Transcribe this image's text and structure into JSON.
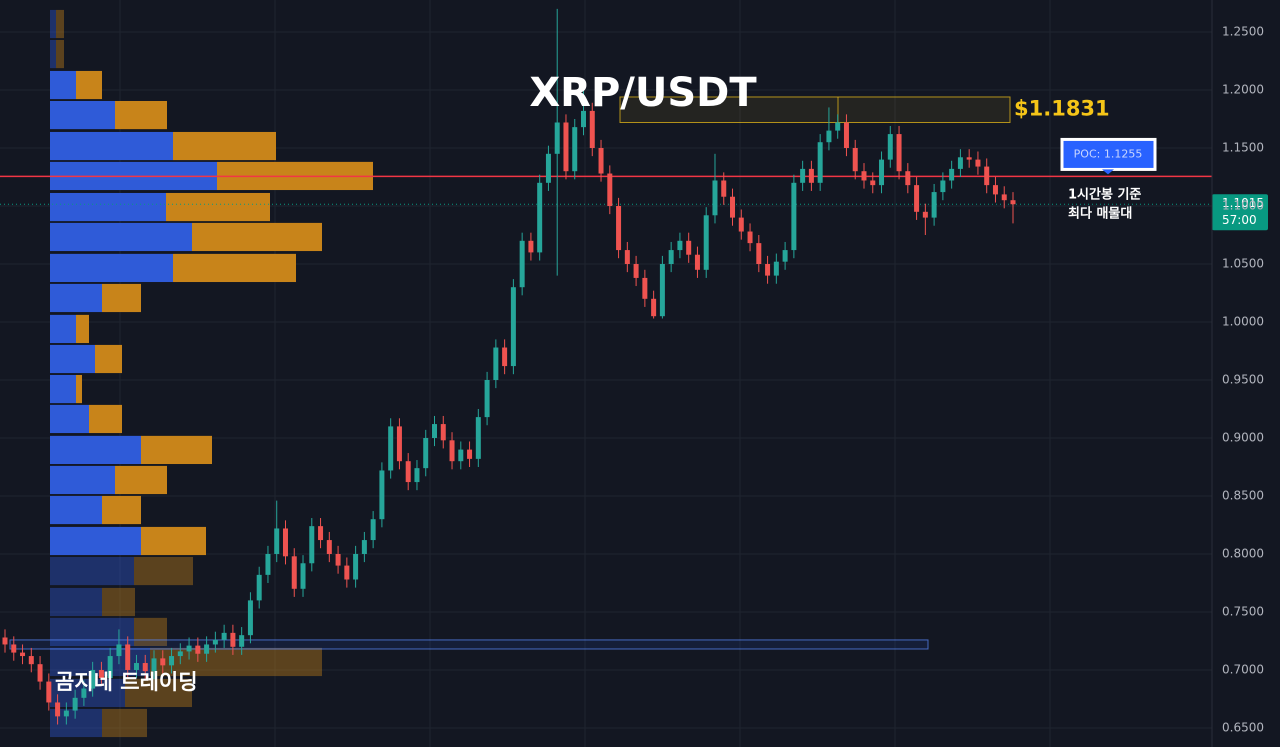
{
  "chart_data": {
    "type": "candlestick",
    "title": "XRP/USDT",
    "watermark": "곰지네 트레이딩",
    "ylim": [
      0.6336,
      1.2776
    ],
    "yticks": [
      {
        "value": 0.65,
        "label": "0.6500"
      },
      {
        "value": 0.7,
        "label": "0.7000"
      },
      {
        "value": 0.75,
        "label": "0.7500"
      },
      {
        "value": 0.8,
        "label": "0.8000"
      },
      {
        "value": 0.85,
        "label": "0.8500"
      },
      {
        "value": 0.9,
        "label": "0.9000"
      },
      {
        "value": 0.95,
        "label": "0.9500"
      },
      {
        "value": 1.0,
        "label": "1.0000"
      },
      {
        "value": 1.05,
        "label": "1.0500"
      },
      {
        "value": 1.1,
        "label": "1.1000"
      },
      {
        "value": 1.15,
        "label": "1.1500"
      },
      {
        "value": 1.2,
        "label": "1.2000"
      },
      {
        "value": 1.25,
        "label": "1.2500"
      }
    ],
    "grid": true,
    "up_color": "#26a69a",
    "down_color": "#ef5350",
    "open": [
      0.728,
      0.722,
      0.715,
      0.712,
      0.705,
      0.69,
      0.672,
      0.66,
      0.665,
      0.676,
      0.684,
      0.7,
      0.693,
      0.712,
      0.722,
      0.7,
      0.706,
      0.699,
      0.71,
      0.704,
      0.712,
      0.716,
      0.721,
      0.714,
      0.722,
      0.726,
      0.732,
      0.72,
      0.73,
      0.76,
      0.782,
      0.8,
      0.822,
      0.798,
      0.77,
      0.792,
      0.824,
      0.812,
      0.8,
      0.79,
      0.778,
      0.8,
      0.812,
      0.83,
      0.872,
      0.91,
      0.88,
      0.862,
      0.874,
      0.9,
      0.912,
      0.898,
      0.88,
      0.89,
      0.882,
      0.918,
      0.95,
      0.978,
      0.962,
      1.03,
      1.07,
      1.06,
      1.12,
      1.145,
      1.172,
      1.13,
      1.168,
      1.182,
      1.15,
      1.128,
      1.1,
      1.062,
      1.05,
      1.038,
      1.02,
      1.005,
      1.05,
      1.062,
      1.07,
      1.058,
      1.045,
      1.092,
      1.122,
      1.108,
      1.09,
      1.078,
      1.068,
      1.05,
      1.04,
      1.052,
      1.062,
      1.12,
      1.132,
      1.12,
      1.155,
      1.165,
      1.172,
      1.15,
      1.13,
      1.122,
      1.118,
      1.14,
      1.162,
      1.13,
      1.118,
      1.095,
      1.09,
      1.112,
      1.122,
      1.132,
      1.142,
      1.14,
      1.134,
      1.118,
      1.11,
      1.105
    ],
    "high": [
      0.735,
      0.729,
      0.722,
      0.719,
      0.712,
      0.697,
      0.679,
      0.672,
      0.683,
      0.691,
      0.707,
      0.707,
      0.719,
      0.735,
      0.729,
      0.713,
      0.713,
      0.717,
      0.717,
      0.719,
      0.723,
      0.728,
      0.728,
      0.729,
      0.733,
      0.739,
      0.739,
      0.737,
      0.767,
      0.789,
      0.807,
      0.846,
      0.829,
      0.805,
      0.799,
      0.831,
      0.831,
      0.819,
      0.807,
      0.797,
      0.807,
      0.819,
      0.837,
      0.879,
      0.917,
      0.917,
      0.887,
      0.881,
      0.907,
      0.919,
      0.919,
      0.905,
      0.897,
      0.897,
      0.925,
      0.957,
      0.985,
      0.985,
      1.037,
      1.077,
      1.077,
      1.127,
      1.152,
      1.27,
      1.179,
      1.175,
      1.2,
      1.189,
      1.157,
      1.135,
      1.107,
      1.069,
      1.057,
      1.045,
      1.027,
      1.057,
      1.069,
      1.077,
      1.077,
      1.065,
      1.099,
      1.145,
      1.129,
      1.115,
      1.097,
      1.085,
      1.075,
      1.057,
      1.059,
      1.069,
      1.127,
      1.139,
      1.139,
      1.162,
      1.185,
      1.179,
      1.179,
      1.157,
      1.137,
      1.129,
      1.147,
      1.169,
      1.169,
      1.137,
      1.125,
      1.102,
      1.119,
      1.129,
      1.139,
      1.149,
      1.149,
      1.147,
      1.141,
      1.125,
      1.117,
      1.112
    ],
    "low": [
      0.715,
      0.708,
      0.705,
      0.698,
      0.683,
      0.665,
      0.653,
      0.653,
      0.658,
      0.669,
      0.677,
      0.686,
      0.686,
      0.705,
      0.693,
      0.693,
      0.692,
      0.692,
      0.697,
      0.697,
      0.705,
      0.709,
      0.707,
      0.707,
      0.715,
      0.719,
      0.713,
      0.713,
      0.723,
      0.753,
      0.775,
      0.793,
      0.791,
      0.763,
      0.763,
      0.785,
      0.805,
      0.793,
      0.783,
      0.771,
      0.771,
      0.793,
      0.805,
      0.823,
      0.865,
      0.873,
      0.855,
      0.855,
      0.867,
      0.893,
      0.891,
      0.873,
      0.873,
      0.875,
      0.875,
      0.911,
      0.943,
      0.955,
      0.955,
      1.023,
      1.053,
      1.053,
      1.113,
      1.04,
      1.123,
      1.123,
      1.161,
      1.143,
      1.121,
      1.093,
      1.055,
      1.043,
      1.031,
      1.013,
      1.003,
      1.003,
      1.043,
      1.055,
      1.051,
      1.038,
      1.038,
      1.085,
      1.101,
      1.083,
      1.071,
      1.061,
      1.043,
      1.033,
      1.033,
      1.045,
      1.055,
      1.113,
      1.113,
      1.113,
      1.148,
      1.158,
      1.143,
      1.123,
      1.115,
      1.111,
      1.111,
      1.133,
      1.123,
      1.111,
      1.088,
      1.075,
      1.083,
      1.105,
      1.115,
      1.125,
      1.133,
      1.127,
      1.111,
      1.103,
      1.098,
      1.085
    ],
    "close": [
      0.722,
      0.715,
      0.712,
      0.705,
      0.69,
      0.672,
      0.66,
      0.665,
      0.676,
      0.684,
      0.7,
      0.693,
      0.712,
      0.722,
      0.7,
      0.706,
      0.699,
      0.71,
      0.704,
      0.712,
      0.716,
      0.721,
      0.714,
      0.722,
      0.726,
      0.732,
      0.72,
      0.73,
      0.76,
      0.782,
      0.8,
      0.822,
      0.798,
      0.77,
      0.792,
      0.824,
      0.812,
      0.8,
      0.79,
      0.778,
      0.8,
      0.812,
      0.83,
      0.872,
      0.91,
      0.88,
      0.862,
      0.874,
      0.9,
      0.912,
      0.898,
      0.88,
      0.89,
      0.882,
      0.918,
      0.95,
      0.978,
      0.962,
      1.03,
      1.07,
      1.06,
      1.12,
      1.145,
      1.172,
      1.13,
      1.168,
      1.182,
      1.15,
      1.128,
      1.1,
      1.062,
      1.05,
      1.038,
      1.02,
      1.005,
      1.05,
      1.062,
      1.07,
      1.058,
      1.045,
      1.092,
      1.122,
      1.108,
      1.09,
      1.078,
      1.068,
      1.05,
      1.04,
      1.052,
      1.062,
      1.12,
      1.132,
      1.12,
      1.155,
      1.165,
      1.172,
      1.15,
      1.13,
      1.122,
      1.118,
      1.14,
      1.162,
      1.13,
      1.118,
      1.095,
      1.09,
      1.112,
      1.122,
      1.132,
      1.142,
      1.14,
      1.134,
      1.118,
      1.11,
      1.105,
      1.1015
    ],
    "volume_profile": {
      "levels": [
        1.2569,
        1.231,
        1.2043,
        1.1784,
        1.1517,
        1.1259,
        1.0991,
        1.0733,
        1.0466,
        1.0207,
        0.994,
        0.9681,
        0.9422,
        0.9164,
        0.8897,
        0.8638,
        0.8379,
        0.8112,
        0.7853,
        0.7586,
        0.7328,
        0.7069,
        0.6802,
        0.6543
      ],
      "buy": [
        6,
        6,
        26,
        65,
        123,
        167,
        116,
        142,
        123,
        52,
        26,
        45,
        26,
        39,
        91,
        65,
        52,
        91,
        84,
        52,
        84,
        100,
        75,
        52
      ],
      "sell": [
        8,
        8,
        26,
        52,
        103,
        156,
        104,
        130,
        123,
        39,
        13,
        27,
        6,
        33,
        71,
        52,
        39,
        65,
        59,
        33,
        33,
        172,
        67,
        45
      ],
      "buy_color": "#2f5bd8",
      "sell_color": "#c8841a",
      "value_area": [
        0.8,
        1.22
      ]
    },
    "poc": {
      "value": 1.1255,
      "label": "POC: 1.1255",
      "color": "#f23645"
    },
    "poc_note": [
      "1시간봉 기준",
      "최다 매물대"
    ],
    "zone": {
      "high": 1.194,
      "low": 1.172,
      "value": 1.1831,
      "label": "$1.1831",
      "color": "#f5c518"
    },
    "range_box": {
      "high": 0.7259,
      "low": 0.7181
    },
    "last_price": {
      "value": 1.1015,
      "label": "1.1015",
      "countdown": "57:00",
      "color": "#089981"
    }
  }
}
